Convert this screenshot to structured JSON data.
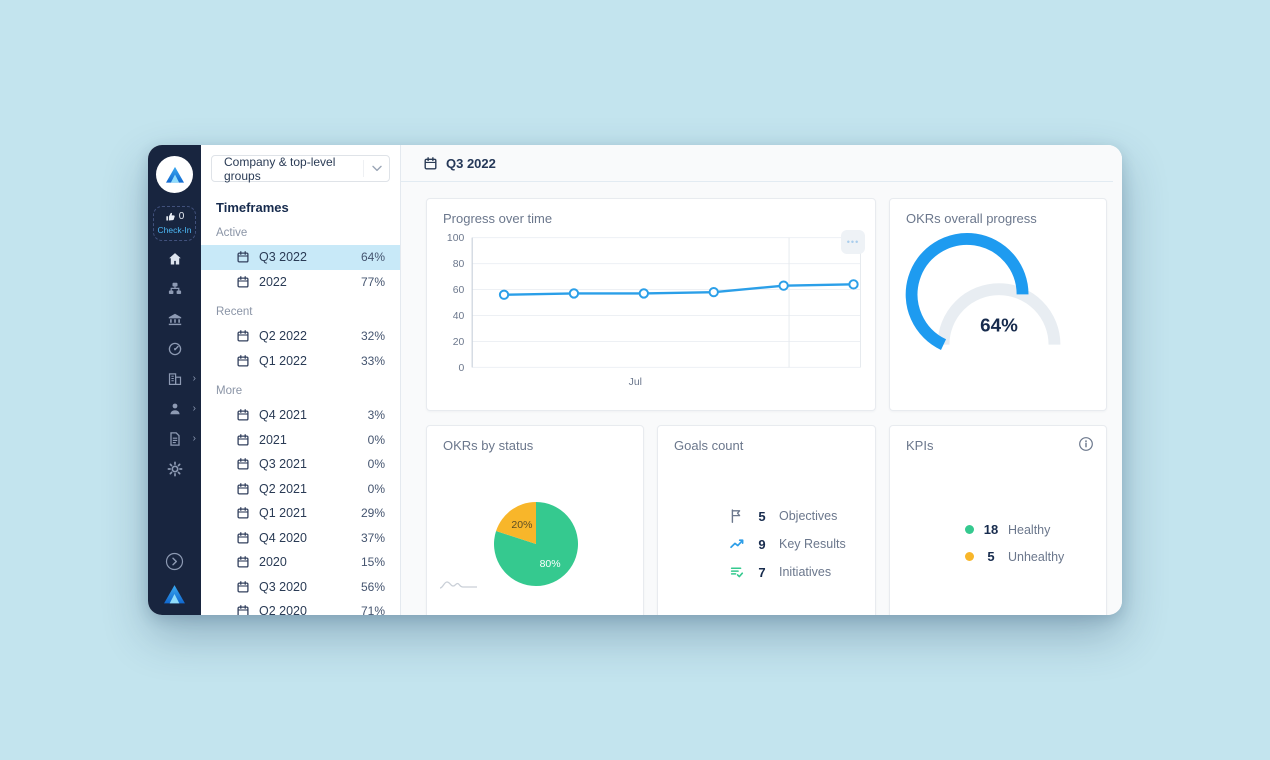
{
  "colors": {
    "page_background": "#c3e4ee",
    "nav_background": "#18253f",
    "active_row": "#c8e9f8",
    "accent_blue": "#2b9fe8",
    "green": "#35c98f",
    "orange": "#f8b62a",
    "dark_text": "#172b4d",
    "muted_text": "#6b778c"
  },
  "nav": {
    "checkin": {
      "count": "0",
      "label": "Check-In"
    },
    "icons": [
      "home",
      "org-chart",
      "bank",
      "dashboard",
      "company",
      "users",
      "documents",
      "settings"
    ],
    "bottom_icons": [
      "collapse-chevron",
      "app-logo"
    ]
  },
  "sidebar": {
    "scope_selector": "Company & top-level groups",
    "title": "Timeframes",
    "sections": [
      {
        "label": "Active",
        "items": [
          {
            "label": "Q3 2022",
            "progress": "64%",
            "active": true
          },
          {
            "label": "2022",
            "progress": "77%",
            "active": false
          }
        ]
      },
      {
        "label": "Recent",
        "items": [
          {
            "label": "Q2 2022",
            "progress": "32%",
            "active": false
          },
          {
            "label": "Q1 2022",
            "progress": "33%",
            "active": false
          }
        ]
      },
      {
        "label": "More",
        "items": [
          {
            "label": "Q4 2021",
            "progress": "3%",
            "active": false
          },
          {
            "label": "2021",
            "progress": "0%",
            "active": false
          },
          {
            "label": "Q3 2021",
            "progress": "0%",
            "active": false
          },
          {
            "label": "Q2 2021",
            "progress": "0%",
            "active": false
          },
          {
            "label": "Q1 2021",
            "progress": "29%",
            "active": false
          },
          {
            "label": "Q4 2020",
            "progress": "37%",
            "active": false
          },
          {
            "label": "2020",
            "progress": "15%",
            "active": false
          },
          {
            "label": "Q3 2020",
            "progress": "56%",
            "active": false
          },
          {
            "label": "Q2 2020",
            "progress": "71%",
            "active": false
          }
        ]
      }
    ]
  },
  "main": {
    "header": {
      "title": "Q3 2022"
    },
    "cards": {
      "progress_over_time": {
        "title": "Progress over time",
        "menu_dots": "•••"
      },
      "overall": {
        "title": "OKRs overall progress",
        "value_label": "64%"
      },
      "by_status": {
        "title": "OKRs by status"
      },
      "goals_count": {
        "title": "Goals count",
        "rows": [
          {
            "icon": "flag-icon",
            "count": "5",
            "label": "Objectives"
          },
          {
            "icon": "trend-up-icon",
            "count": "9",
            "label": "Key Results"
          },
          {
            "icon": "initiative-list-icon",
            "count": "7",
            "label": "Initiatives"
          }
        ]
      },
      "kpis": {
        "title": "KPIs",
        "rows": [
          {
            "color": "#35c98f",
            "count": "18",
            "label": "Healthy"
          },
          {
            "color": "#f8b62a",
            "count": "5",
            "label": "Unhealthy"
          }
        ]
      }
    }
  },
  "chart_data": [
    {
      "type": "line",
      "name": "progress_over_time",
      "title": "Progress over time",
      "x_axis_label": "Jul",
      "x_label_fraction": 0.42,
      "y_ticks": [
        0,
        20,
        40,
        60,
        80,
        100
      ],
      "ylim": [
        0,
        100
      ],
      "values": [
        56,
        57,
        57,
        58,
        63,
        64
      ],
      "point_start_fraction": 0.082,
      "point_step_fraction": 0.18,
      "month_gridline_fraction": 0.816,
      "line_color": "#2b9fe8",
      "grid": true,
      "legend": "none"
    },
    {
      "type": "gauge",
      "name": "okrs_overall_progress",
      "title": "OKRs overall progress",
      "value": 64,
      "max": 100,
      "label": "64%",
      "color": "#1e9bf0",
      "track_color": "#e8edf2"
    },
    {
      "type": "pie",
      "name": "okrs_by_status",
      "title": "OKRs by status",
      "start_angle_deg": -90,
      "slices": [
        {
          "label": "80%",
          "value": 80,
          "color": "#35c98f",
          "label_color": "#ffffff"
        },
        {
          "label": "20%",
          "value": 20,
          "color": "#f8b62a",
          "label_color": "#5d4e24"
        }
      ]
    }
  ]
}
